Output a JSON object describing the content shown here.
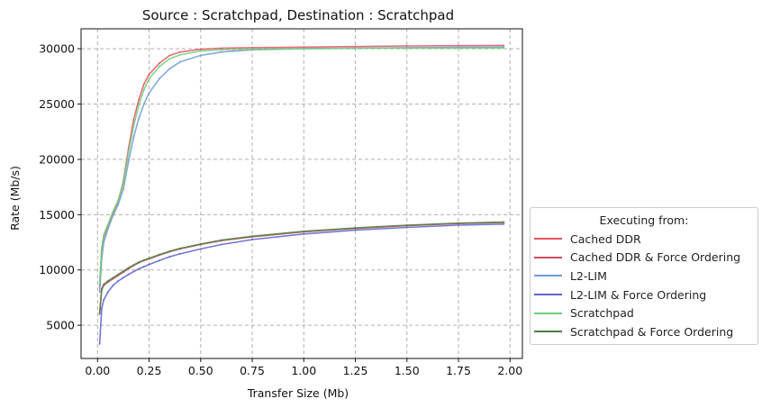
{
  "chart_data": {
    "type": "line",
    "title": "Source : Scratchpad, Destination : Scratchpad",
    "xlabel": "Transfer Size (Mb)",
    "ylabel": "Rate (Mb/s)",
    "xlim": [
      -0.08,
      2.06
    ],
    "ylim": [
      2000,
      31800
    ],
    "xticks": [
      0.0,
      0.25,
      0.5,
      0.75,
      1.0,
      1.25,
      1.5,
      1.75,
      2.0
    ],
    "xtick_labels": [
      "0.00",
      "0.25",
      "0.50",
      "0.75",
      "1.00",
      "1.25",
      "1.50",
      "1.75",
      "2.00"
    ],
    "yticks": [
      5000,
      10000,
      15000,
      20000,
      25000,
      30000
    ],
    "ytick_labels": [
      "5000",
      "10000",
      "15000",
      "20000",
      "25000",
      "30000"
    ],
    "grid": true,
    "legend_title": "Executing from:",
    "legend_position": "right",
    "x": [
      0.01,
      0.02,
      0.03,
      0.05,
      0.075,
      0.1,
      0.125,
      0.15,
      0.175,
      0.2,
      0.225,
      0.25,
      0.3,
      0.35,
      0.4,
      0.5,
      0.6,
      0.75,
      1.0,
      1.25,
      1.5,
      1.75,
      1.97
    ],
    "series": [
      {
        "name": "Cached DDR",
        "color": "#e8545a",
        "values": [
          8500,
          11800,
          13000,
          14000,
          15200,
          16200,
          18000,
          21000,
          23600,
          25400,
          26800,
          27700,
          28700,
          29400,
          29700,
          29950,
          30050,
          30100,
          30150,
          30200,
          30250,
          30280,
          30300
        ]
      },
      {
        "name": "Cached DDR & Force Ordering",
        "color": "#cc4f5e",
        "values": [
          6000,
          8200,
          8600,
          8900,
          9200,
          9500,
          9800,
          10100,
          10400,
          10650,
          10850,
          11000,
          11350,
          11650,
          11900,
          12300,
          12650,
          13000,
          13450,
          13750,
          14000,
          14200,
          14300
        ]
      },
      {
        "name": "L2-LIM",
        "color": "#6f9ad4",
        "values": [
          8000,
          11000,
          12500,
          13700,
          14900,
          15900,
          17300,
          19800,
          22000,
          23700,
          25000,
          26000,
          27300,
          28200,
          28800,
          29400,
          29700,
          29900,
          30000,
          30050,
          30100,
          30120,
          30150
        ]
      },
      {
        "name": "L2-LIM & Force Ordering",
        "color": "#5a62cc",
        "values": [
          3300,
          6500,
          7300,
          8000,
          8600,
          9000,
          9300,
          9600,
          9850,
          10100,
          10300,
          10500,
          10850,
          11200,
          11450,
          11900,
          12300,
          12750,
          13250,
          13600,
          13850,
          14050,
          14150
        ]
      },
      {
        "name": "Scratchpad",
        "color": "#6fd07a",
        "values": [
          8800,
          12000,
          13200,
          14100,
          15300,
          16300,
          17800,
          20600,
          23000,
          24900,
          26300,
          27300,
          28400,
          29100,
          29450,
          29800,
          29900,
          29950,
          30000,
          30050,
          30050,
          30050,
          30050
        ]
      },
      {
        "name": "Scratchpad & Force Ordering",
        "color": "#4c7f48",
        "values": [
          6100,
          8300,
          8700,
          9000,
          9300,
          9600,
          9900,
          10200,
          10450,
          10700,
          10900,
          11050,
          11400,
          11700,
          11950,
          12350,
          12700,
          13050,
          13500,
          13800,
          14050,
          14230,
          14330
        ]
      }
    ]
  }
}
